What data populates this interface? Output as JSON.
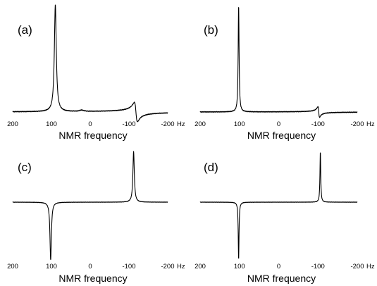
{
  "chart_data": [
    {
      "type": "line",
      "panel_label": "(a)",
      "xlabel": "NMR frequency",
      "x_unit": "Hz",
      "xlim": [
        200,
        -200
      ],
      "x_ticks": [
        "200",
        "100",
        "0",
        "-100",
        "-200"
      ],
      "peaks": [
        {
          "x": 90,
          "height": 1.0,
          "width": 3.0,
          "shape": "absorptive"
        },
        {
          "x": -118,
          "height": 0.09,
          "width": 4.0,
          "shape": "dispersive"
        },
        {
          "x": 22,
          "height": 0.012,
          "width": 6.0,
          "shape": "absorptive"
        }
      ]
    },
    {
      "type": "line",
      "panel_label": "(b)",
      "xlabel": "NMR frequency",
      "x_unit": "Hz",
      "xlim": [
        200,
        -200
      ],
      "x_ticks": [
        "200",
        "100",
        "0",
        "-100",
        "-200"
      ],
      "peaks": [
        {
          "x": 102,
          "height": 1.0,
          "width": 1.4,
          "shape": "absorptive"
        },
        {
          "x": -102,
          "height": 0.05,
          "width": 2.0,
          "shape": "dispersive"
        }
      ]
    },
    {
      "type": "line",
      "panel_label": "(c)",
      "xlabel": "NMR frequency",
      "x_unit": "Hz",
      "xlim": [
        200,
        -200
      ],
      "x_ticks": [
        "200",
        "100",
        "0",
        "-100",
        "-200"
      ],
      "peaks": [
        {
          "x": 102,
          "height": -1.0,
          "width": 2.2,
          "shape": "absorptive"
        },
        {
          "x": -112,
          "height": 0.75,
          "width": 2.2,
          "shape": "absorptive"
        }
      ]
    },
    {
      "type": "line",
      "panel_label": "(d)",
      "xlabel": "NMR frequency",
      "x_unit": "Hz",
      "xlim": [
        200,
        -200
      ],
      "x_ticks": [
        "200",
        "100",
        "0",
        "-100",
        "-200"
      ],
      "peaks": [
        {
          "x": 102,
          "height": -1.0,
          "width": 1.2,
          "shape": "absorptive"
        },
        {
          "x": -106,
          "height": 0.75,
          "width": 1.2,
          "shape": "absorptive"
        }
      ]
    }
  ]
}
